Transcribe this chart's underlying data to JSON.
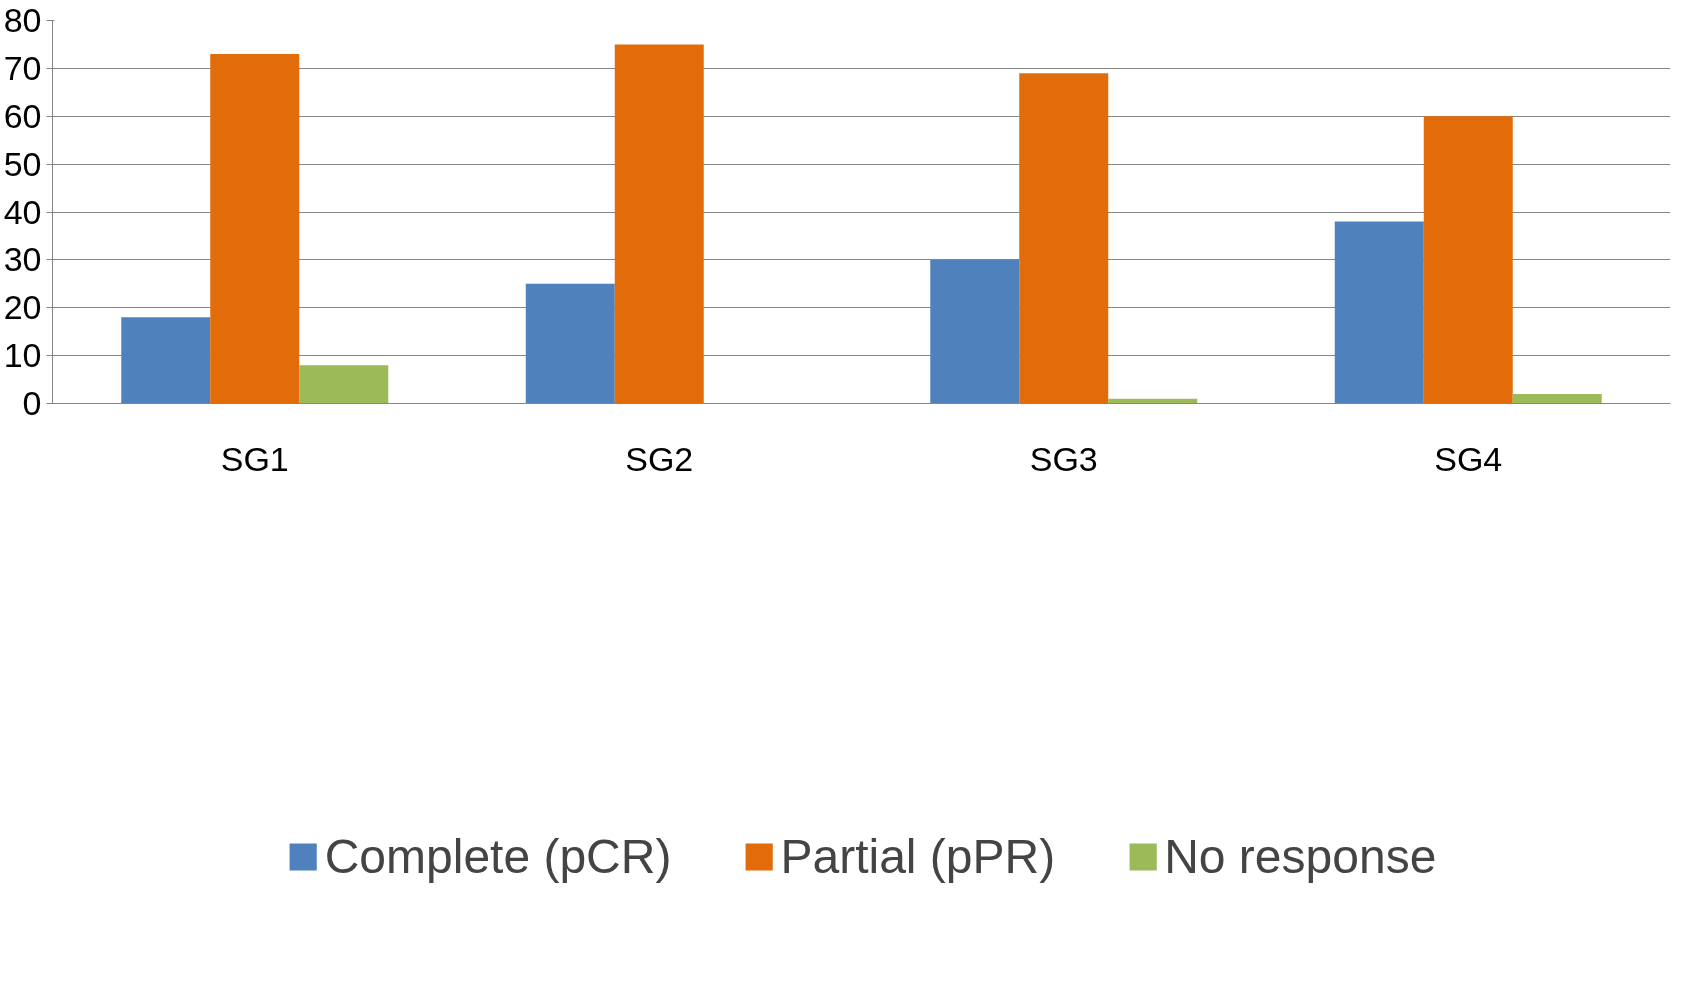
{
  "chart_data": {
    "type": "bar",
    "categories": [
      "SG1",
      "SG2",
      "SG3",
      "SG4"
    ],
    "series": [
      {
        "name": "Complete (pCR)",
        "color": "#4f81bd",
        "values": [
          18,
          25,
          30,
          38
        ]
      },
      {
        "name": "Partial (pPR)",
        "color": "#e36c0a",
        "values": [
          73,
          75,
          69,
          60
        ]
      },
      {
        "name": "No response",
        "color": "#9bbb59",
        "values": [
          8,
          0,
          1,
          2
        ]
      }
    ],
    "ylim": [
      0,
      80
    ],
    "yticks": [
      0,
      10,
      20,
      30,
      40,
      50,
      60,
      70,
      80
    ],
    "grid": "y",
    "legend": "bottom"
  }
}
